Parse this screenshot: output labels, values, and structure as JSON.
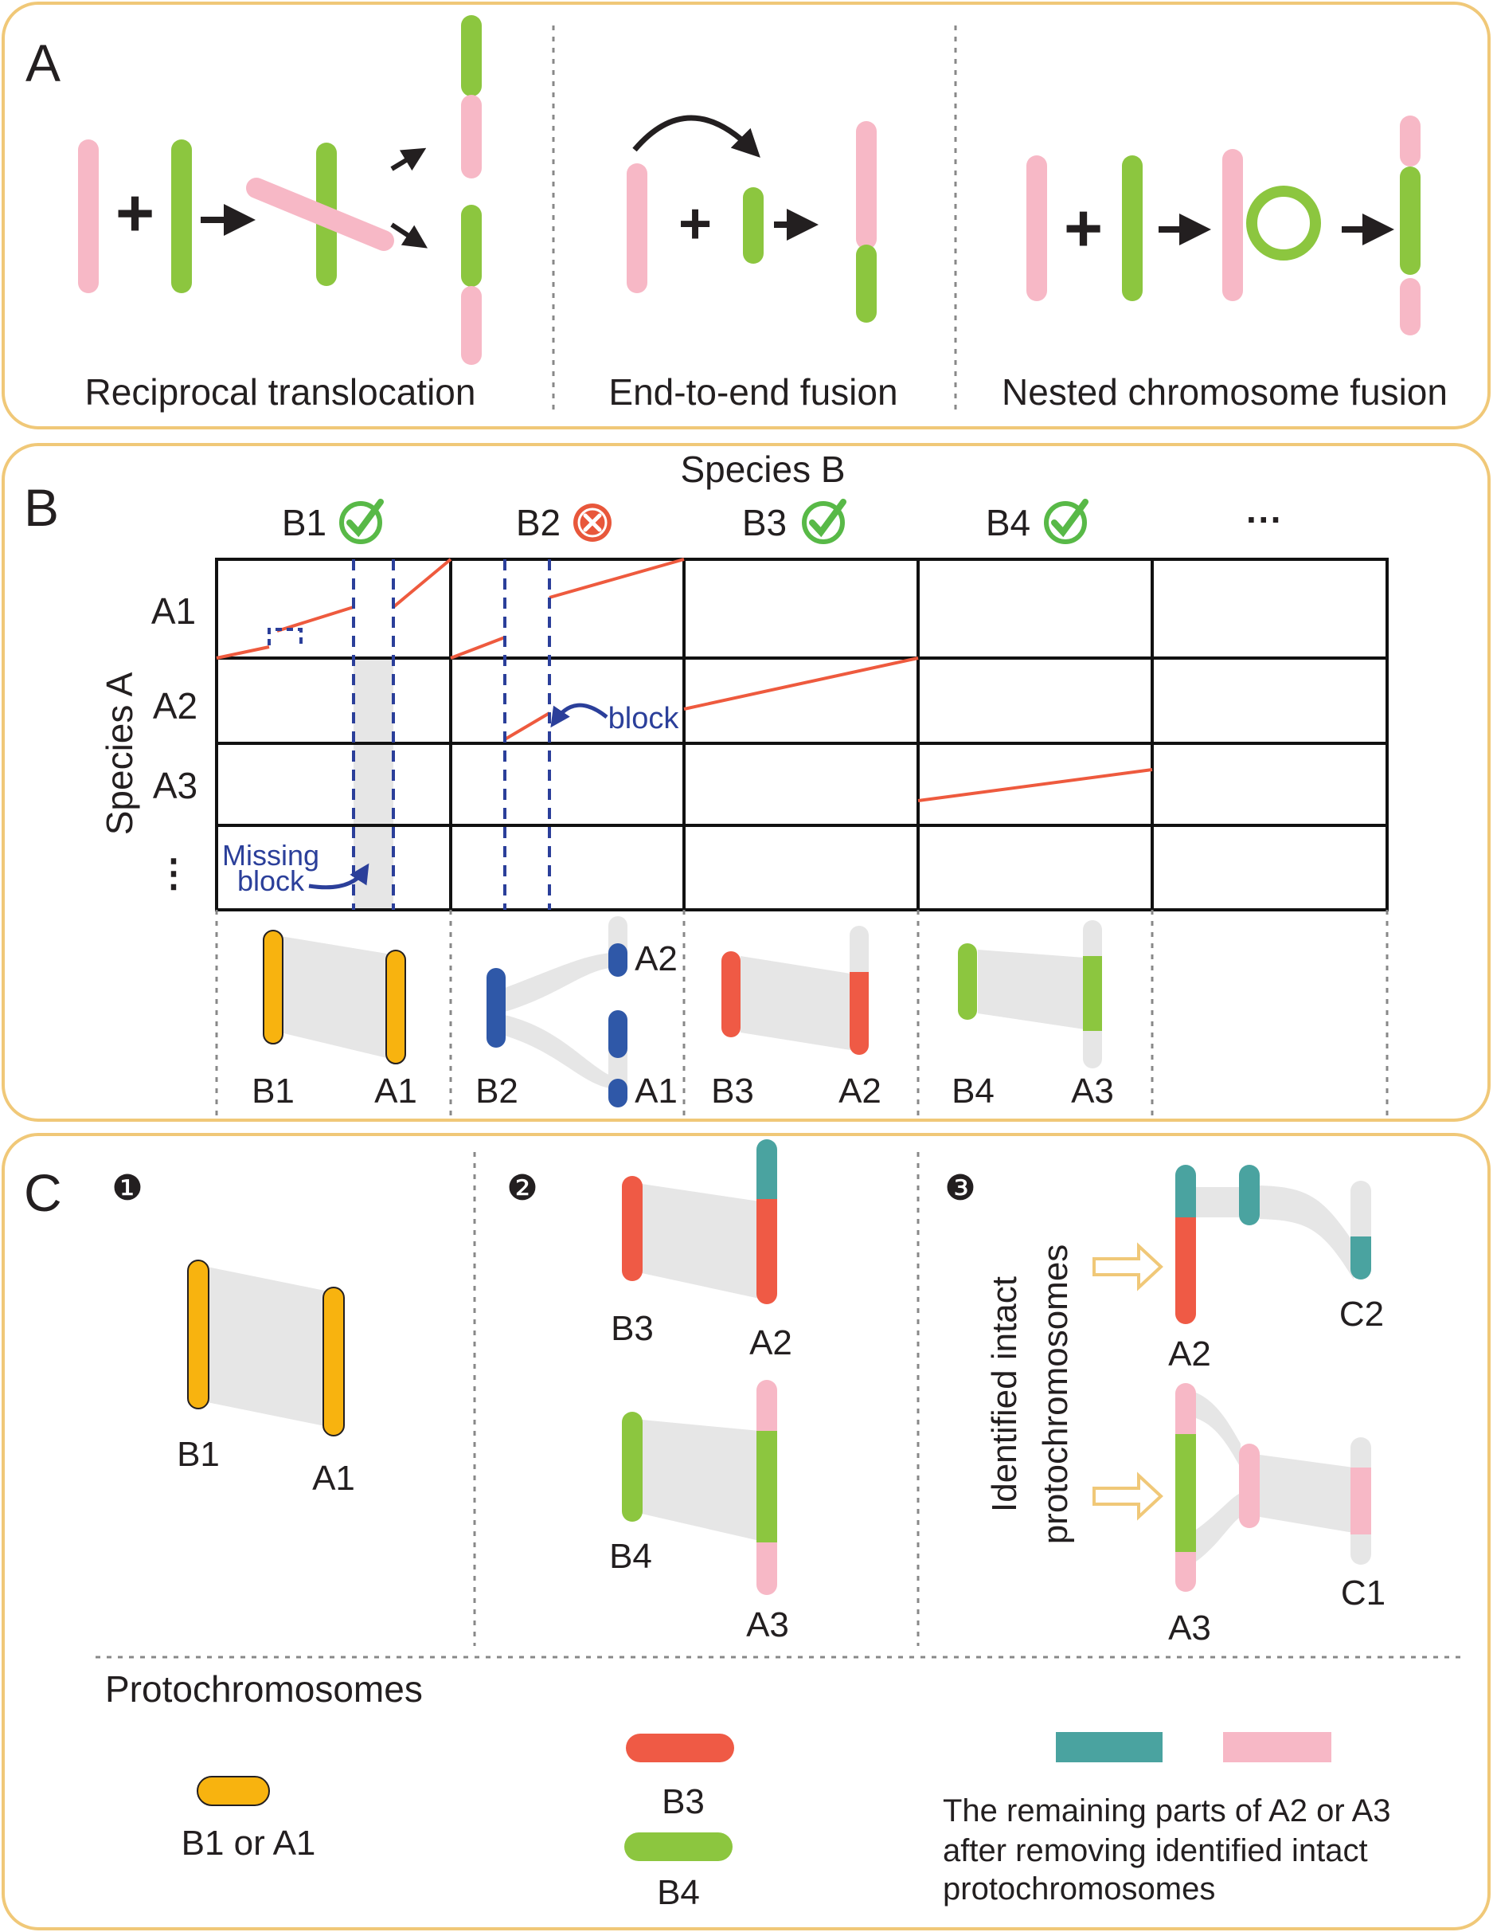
{
  "colors": {
    "pink": "#f7b8c6",
    "green": "#8cc63f",
    "orange": "#f8b30f",
    "red": "#ef5a45",
    "blue": "#2f58a8",
    "teal": "#4aa3a0",
    "gray": "#e6e6e6",
    "panel_border": "#f0c878",
    "dash_blue": "#2b3f9a",
    "dot_line": "#ee5a3e",
    "check": "#58b947",
    "cross": "#e8573b"
  },
  "panel_a": {
    "letter": "A",
    "captions": [
      "Reciprocal translocation",
      "End-to-end fusion",
      "Nested chromosome fusion"
    ],
    "plus": "+"
  },
  "panel_b": {
    "letter": "B",
    "species_b_label": "Species B",
    "species_a_label": "Species A",
    "columns": [
      "B1",
      "B2",
      "B3",
      "B4",
      "···"
    ],
    "column_status": [
      "check",
      "cross",
      "check",
      "check",
      ""
    ],
    "rows": [
      "A1",
      "A2",
      "A3",
      "⋮"
    ],
    "block_label": "block",
    "missing_label": [
      "Missing",
      "block"
    ],
    "synteny": [
      {
        "left": "B1",
        "right": "A1"
      },
      {
        "left": "B2",
        "right_top": "A2",
        "right_bottom": "A1"
      },
      {
        "left": "B3",
        "right": "A2"
      },
      {
        "left": "B4",
        "right": "A3"
      }
    ]
  },
  "panel_c": {
    "letter": "C",
    "steps": [
      "❶",
      "❷",
      "❸"
    ],
    "step1": {
      "left": "B1",
      "right": "A1"
    },
    "step2": [
      {
        "left": "B3",
        "right": "A2"
      },
      {
        "left": "B4",
        "right": "A3"
      }
    ],
    "step3": {
      "side_label": [
        "Identified intact",
        "protochromosomes"
      ],
      "top": {
        "left": "A2",
        "right": "C2"
      },
      "bottom": {
        "left": "A3",
        "right": "C1"
      }
    },
    "legend": {
      "title": "Protochromosomes",
      "item1": "B1 or A1",
      "item2": "B3",
      "item3": "B4",
      "note": [
        "The remaining parts of A2 or A3",
        "after removing identified intact",
        "protochromosomes"
      ]
    }
  }
}
